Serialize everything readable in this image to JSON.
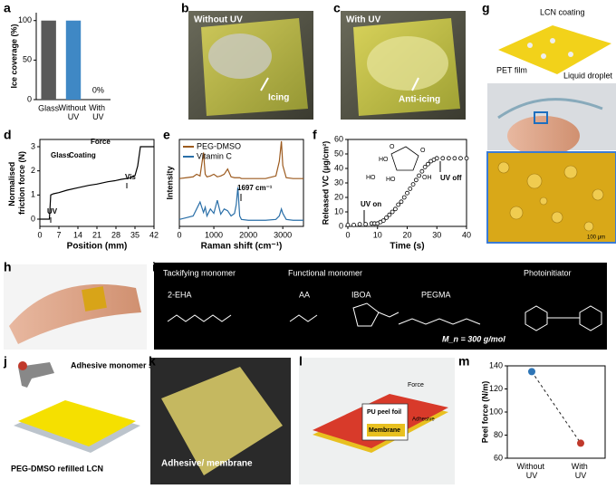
{
  "panel_labels": [
    "a",
    "b",
    "c",
    "d",
    "e",
    "f",
    "g",
    "h",
    "i",
    "j",
    "k",
    "l",
    "m"
  ],
  "photos": {
    "b": [
      "Without UV",
      "Icing"
    ],
    "c": [
      "With UV",
      "Anti-icing"
    ],
    "g": [
      "LCN coating",
      "PET film",
      "Liquid droplet",
      "100 μm"
    ],
    "i": [
      "Tackifying monomer",
      "Functional monomer",
      "Photoinitiator",
      "2-EHA",
      "AA",
      "IBOA",
      "PEGMA",
      "M_n = 300 g/mol"
    ],
    "j": [
      "Adhesive monomer spray",
      "PEG-DMSO refilled LCN"
    ],
    "k": [
      "Adhesive/ membrane"
    ],
    "l": [
      "Force",
      "PU peel foil",
      "Adhesive",
      "Membrane"
    ]
  },
  "chart_data": [
    {
      "type": "bar",
      "ylabel": "Ice coverage (%)",
      "categories": [
        "Glass",
        "Without UV",
        "With UV"
      ],
      "values": [
        100,
        100,
        0
      ],
      "value_labels": [
        null,
        null,
        "0%"
      ],
      "colors": [
        "#595959",
        "#3f88c5",
        "#3f88c5"
      ],
      "ylim": [
        0,
        110
      ],
      "yticks": [
        0,
        50,
        100
      ]
    },
    {
      "type": "line",
      "ylabel": "Normalised friction force (N)",
      "xlabel": "Position (mm)",
      "x": [
        0,
        2,
        3.5,
        4,
        5,
        7,
        10,
        14,
        18,
        21,
        25,
        28,
        30,
        33,
        35,
        36,
        37,
        39,
        42
      ],
      "values": [
        0,
        0,
        0,
        1.0,
        1.05,
        1.1,
        1.2,
        1.3,
        1.4,
        1.45,
        1.55,
        1.6,
        1.65,
        1.7,
        1.8,
        2.2,
        3.0,
        3.0,
        3.0
      ],
      "color": "#000000",
      "xlim": [
        0,
        42
      ],
      "ylim": [
        -0.3,
        3.3
      ],
      "xticks": [
        0,
        7,
        14,
        21,
        28,
        35,
        42
      ],
      "yticks": [
        0,
        1,
        2,
        3
      ],
      "annotations": [
        "UV",
        "Vis",
        "Force",
        "Glass",
        "Coating"
      ]
    },
    {
      "type": "line",
      "ylabel": "Intensity",
      "xlabel": "Raman shift (cm⁻¹)",
      "legend": "upper left",
      "x": [
        0,
        200,
        400,
        500,
        600,
        700,
        750,
        800,
        900,
        1000,
        1100,
        1200,
        1300,
        1400,
        1500,
        1600,
        1650,
        1697,
        1750,
        1800,
        2000,
        2500,
        2800,
        2900,
        2960,
        3000,
        3100,
        3300,
        3600
      ],
      "series": [
        {
          "name": "PEG-DMSO",
          "color": "#9c5a1e",
          "values": [
            0.55,
            0.56,
            0.57,
            0.6,
            0.58,
            0.85,
            0.6,
            0.57,
            0.58,
            0.6,
            0.57,
            0.58,
            0.6,
            0.66,
            0.57,
            0.56,
            0.56,
            0.56,
            0.56,
            0.55,
            0.55,
            0.55,
            0.58,
            0.75,
            0.98,
            0.7,
            0.56,
            0.55,
            0.55
          ]
        },
        {
          "name": "Vitamin C",
          "color": "#2a6fa8",
          "values": [
            0.08,
            0.1,
            0.12,
            0.2,
            0.28,
            0.16,
            0.22,
            0.12,
            0.2,
            0.15,
            0.3,
            0.14,
            0.2,
            0.18,
            0.12,
            0.15,
            0.25,
            0.45,
            0.12,
            0.08,
            0.07,
            0.07,
            0.08,
            0.12,
            0.2,
            0.15,
            0.08,
            0.07,
            0.07
          ]
        }
      ],
      "xlim": [
        0,
        3600
      ],
      "ylim": [
        0,
        1
      ],
      "xticks": [
        0,
        1000,
        2000,
        3000
      ],
      "annotations": [
        "1697 cm⁻¹"
      ]
    },
    {
      "type": "scatter",
      "ylabel": "Released VC (μg/cm²)",
      "xlabel": "Time (s)",
      "x": [
        0,
        2,
        4,
        6,
        8,
        9,
        10,
        11,
        12,
        13,
        14,
        15,
        16,
        17,
        18,
        19,
        20,
        21,
        22,
        23,
        24,
        25,
        26,
        27,
        28,
        29,
        30,
        32,
        34,
        36,
        38,
        40
      ],
      "values": [
        1,
        1,
        1.5,
        1.5,
        2,
        2,
        2,
        3,
        4,
        6,
        8,
        10,
        12,
        15,
        17,
        20,
        23,
        26,
        29,
        32,
        35,
        38,
        41,
        43,
        45,
        46,
        47,
        47,
        47,
        47,
        47,
        47
      ],
      "color": "#000000",
      "xlim": [
        0,
        40
      ],
      "ylim": [
        0,
        60
      ],
      "xticks": [
        0,
        10,
        20,
        30,
        40
      ],
      "yticks": [
        0,
        10,
        20,
        30,
        40,
        50,
        60
      ],
      "annotations": [
        "UV on",
        "UV off"
      ],
      "structure_labels": [
        "HO",
        "HO",
        "O",
        "O",
        "HO",
        "OH"
      ]
    },
    {
      "type": "dot",
      "ylabel": "Peel force (N/m)",
      "categories": [
        "Without UV",
        "With UV"
      ],
      "values": [
        135,
        73
      ],
      "colors": [
        "#2e75b6",
        "#c0392b"
      ],
      "line_style": "dashed",
      "ylim": [
        60,
        140
      ],
      "yticks": [
        60,
        80,
        100,
        120,
        140
      ]
    }
  ]
}
